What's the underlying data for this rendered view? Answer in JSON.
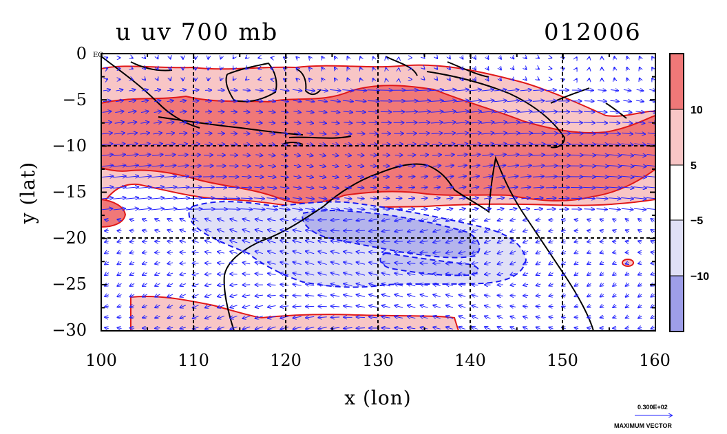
{
  "title_left": "u uv 700 mb",
  "title_right": "012006",
  "xlabel": "x (lon)",
  "ylabel": "y (lat)",
  "eq_label": "EQ",
  "x_ticks": [
    "100",
    "110",
    "120",
    "130",
    "140",
    "150",
    "160"
  ],
  "y_ticks": [
    "0",
    "−5",
    "−10",
    "−15",
    "−20",
    "−25",
    "−30"
  ],
  "colorbar": {
    "labels": [
      "10",
      "5",
      "−5",
      "−10"
    ],
    "colors": [
      "#f07878",
      "#f8c6c6",
      "#ffffff",
      "#e0e0f6",
      "#9e9ee8"
    ]
  },
  "vector_scale": {
    "value": "0.300E+02",
    "label": "MAXIMUM VECTOR",
    "color": "#2020ff"
  },
  "chart_data": {
    "type": "heatmap",
    "title": "u uv 700 mb",
    "date": "012006",
    "xlabel": "x (lon)",
    "ylabel": "y (lat)",
    "xlim": [
      100,
      160
    ],
    "ylim": [
      -30,
      0
    ],
    "x_ticks": [
      100,
      110,
      120,
      130,
      140,
      150,
      160
    ],
    "y_ticks": [
      0,
      -5,
      -10,
      -15,
      -20,
      -25,
      -30
    ],
    "contour_levels": [
      -10,
      -5,
      5,
      10
    ],
    "grid": "dashed at 10 deg lon and 10 deg lat",
    "fill_colors": {
      "gt10": "#f07878",
      "5to10": "#f8c6c6",
      "m5to5": "#ffffff",
      "m10tom5": "#e0e0f6",
      "ltm10": "#9e9ee8"
    },
    "vector_max": 30
  }
}
